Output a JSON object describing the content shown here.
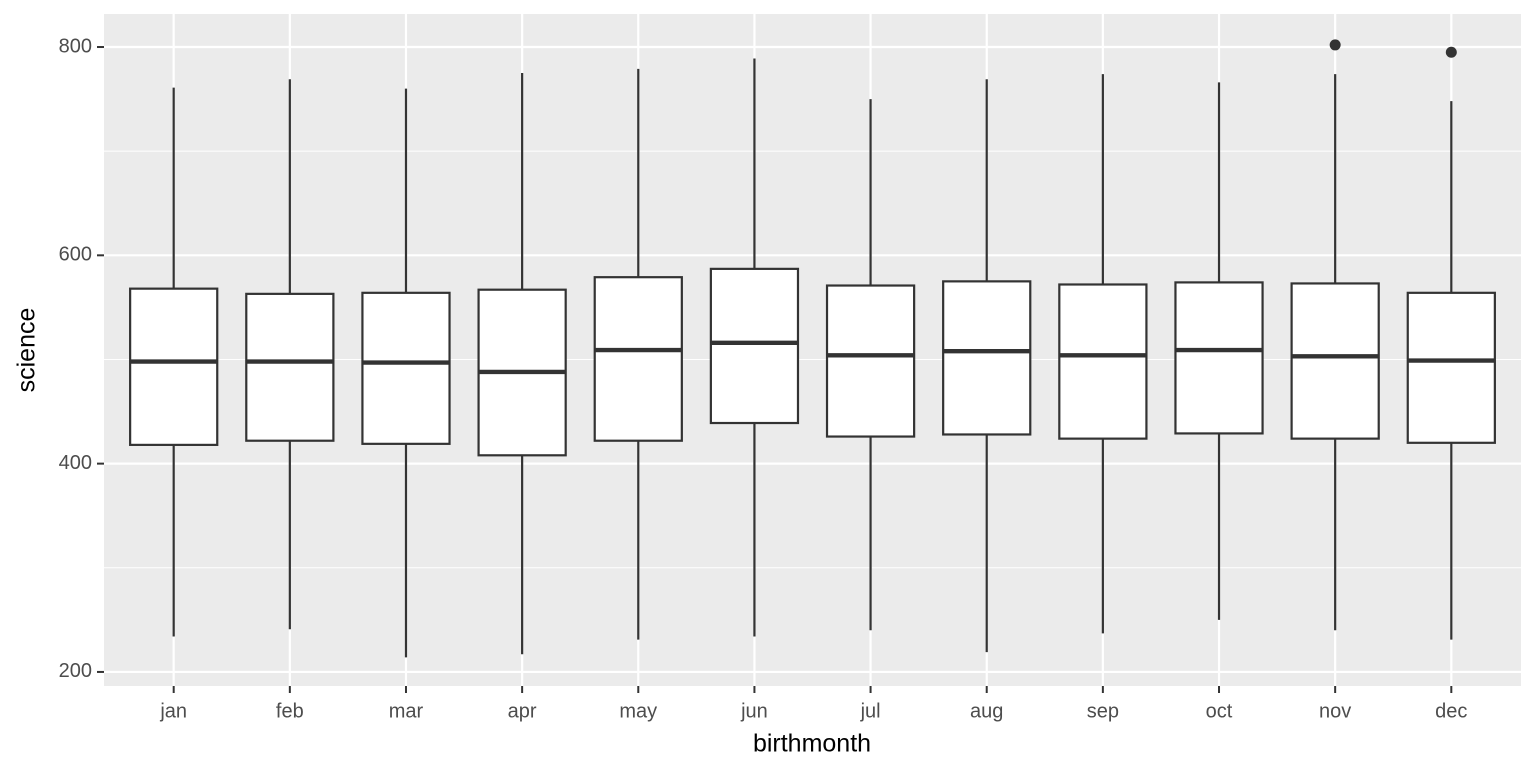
{
  "chart_data": {
    "type": "box",
    "x_label": "birthmonth",
    "y_label": "science",
    "categories": [
      "jan",
      "feb",
      "mar",
      "apr",
      "may",
      "jun",
      "jul",
      "aug",
      "sep",
      "oct",
      "nov",
      "dec"
    ],
    "min": [
      234,
      241,
      214,
      217,
      231,
      234,
      240,
      219,
      237,
      250,
      240,
      231
    ],
    "q1": [
      418,
      422,
      419,
      408,
      422,
      439,
      426,
      428,
      424,
      429,
      424,
      420
    ],
    "median": [
      498,
      498,
      497,
      488,
      509,
      516,
      504,
      508,
      504,
      509,
      503,
      499
    ],
    "q3": [
      568,
      563,
      564,
      567,
      579,
      587,
      571,
      575,
      572,
      574,
      573,
      564
    ],
    "max": [
      761,
      769,
      760,
      775,
      779,
      789,
      750,
      769,
      774,
      766,
      774,
      748
    ],
    "outliers": [
      [],
      [],
      [],
      [],
      [],
      [],
      [],
      [],
      [],
      [],
      [
        802
      ],
      [
        795
      ]
    ],
    "box_color": "#333333",
    "box_fill": "#ffffff",
    "ylim": [
      186.5,
      831.7
    ],
    "yticks": [
      200,
      400,
      600,
      800
    ],
    "minor_yticks": [
      300,
      500,
      700
    ],
    "grid": true,
    "panel_color": "#ebebeb"
  }
}
